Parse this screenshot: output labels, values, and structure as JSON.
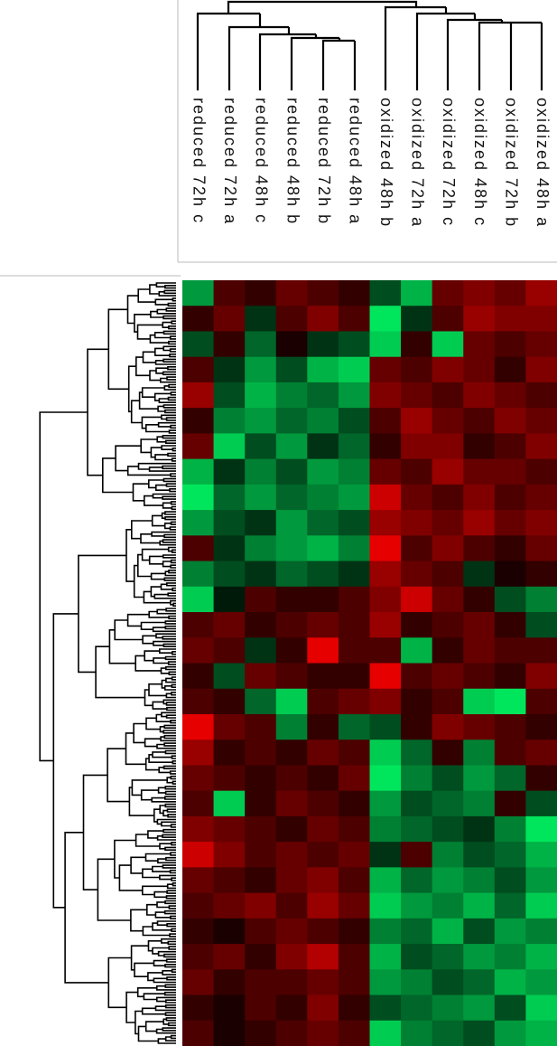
{
  "chart_data": {
    "type": "heatmap",
    "categories": [
      "reduced 72h c",
      "reduced 72h a",
      "reduced 48h c",
      "reduced 48h b",
      "reduced 72h b",
      "reduced 48h a",
      "oxidized 48h b",
      "oxidized 72h a",
      "oxidized 72h c",
      "oxidized 48h c",
      "oxidized 72h b",
      "oxidized 48h a"
    ],
    "clim": [
      -1,
      1
    ],
    "low_color": "#00ff66",
    "mid_color": "#000000",
    "high_color": "#ff0000",
    "values": [
      [
        -0.6,
        0.3,
        0.2,
        0.4,
        0.3,
        0.2,
        -0.3,
        -0.7,
        0.4,
        0.5,
        0.4,
        0.6
      ],
      [
        0.2,
        0.4,
        -0.2,
        0.3,
        0.5,
        0.3,
        -0.9,
        -0.2,
        0.3,
        0.6,
        0.5,
        0.5
      ],
      [
        -0.3,
        0.2,
        -0.4,
        0.1,
        -0.2,
        -0.3,
        -0.8,
        0.2,
        -0.8,
        0.4,
        0.3,
        0.4
      ],
      [
        0.3,
        -0.2,
        -0.6,
        -0.3,
        -0.7,
        -0.8,
        0.4,
        0.3,
        0.5,
        0.4,
        0.2,
        0.5
      ],
      [
        0.6,
        -0.3,
        -0.7,
        -0.5,
        -0.4,
        -0.6,
        0.5,
        0.4,
        0.3,
        0.5,
        0.4,
        0.3
      ],
      [
        0.2,
        -0.5,
        -0.6,
        -0.4,
        -0.5,
        -0.3,
        0.3,
        0.6,
        0.4,
        0.3,
        0.5,
        0.4
      ],
      [
        0.4,
        -0.8,
        -0.3,
        -0.6,
        -0.2,
        -0.4,
        0.2,
        0.5,
        0.5,
        0.2,
        0.3,
        0.5
      ],
      [
        -0.7,
        -0.2,
        -0.5,
        -0.3,
        -0.6,
        -0.5,
        0.4,
        0.3,
        0.6,
        0.4,
        0.4,
        0.3
      ],
      [
        -0.9,
        -0.4,
        -0.6,
        -0.4,
        -0.5,
        -0.6,
        0.8,
        0.4,
        0.3,
        0.5,
        0.3,
        0.4
      ],
      [
        -0.6,
        -0.3,
        -0.2,
        -0.6,
        -0.4,
        -0.3,
        0.6,
        0.5,
        0.4,
        0.6,
        0.4,
        0.5
      ],
      [
        0.3,
        -0.2,
        -0.5,
        -0.6,
        -0.7,
        -0.5,
        0.9,
        0.3,
        0.5,
        0.3,
        0.2,
        0.4
      ],
      [
        -0.5,
        -0.3,
        -0.2,
        -0.4,
        -0.3,
        -0.2,
        0.6,
        0.4,
        0.3,
        -0.2,
        0.1,
        0.2
      ],
      [
        -0.8,
        -0.1,
        0.3,
        0.2,
        0.2,
        0.3,
        0.5,
        0.8,
        0.4,
        0.2,
        -0.3,
        -0.5
      ],
      [
        0.3,
        0.4,
        0.2,
        0.3,
        0.4,
        0.3,
        0.6,
        0.2,
        0.3,
        0.4,
        0.2,
        -0.3
      ],
      [
        0.4,
        0.3,
        -0.2,
        0.2,
        0.9,
        0.3,
        0.3,
        -0.7,
        0.2,
        0.4,
        0.3,
        0.3
      ],
      [
        0.2,
        -0.3,
        0.4,
        0.3,
        0.2,
        0.2,
        0.9,
        0.3,
        0.4,
        0.3,
        0.2,
        0.5
      ],
      [
        0.3,
        0.2,
        -0.4,
        -0.8,
        0.3,
        0.4,
        0.5,
        0.2,
        0.3,
        -0.8,
        -0.9,
        0.3
      ],
      [
        0.9,
        0.4,
        0.3,
        -0.5,
        0.2,
        -0.4,
        -0.3,
        0.2,
        0.5,
        0.4,
        0.3,
        0.2
      ],
      [
        0.6,
        0.2,
        0.3,
        0.2,
        0.4,
        0.3,
        -0.8,
        -0.4,
        0.2,
        -0.5,
        0.3,
        0.4
      ],
      [
        0.4,
        0.3,
        0.2,
        0.3,
        0.2,
        0.4,
        -0.9,
        -0.5,
        -0.3,
        -0.6,
        -0.4,
        0.2
      ],
      [
        0.3,
        -0.8,
        0.2,
        0.4,
        0.3,
        0.2,
        -0.6,
        -0.3,
        -0.4,
        -0.5,
        0.2,
        -0.3
      ],
      [
        0.5,
        0.4,
        0.3,
        0.2,
        0.4,
        0.3,
        -0.5,
        -0.4,
        -0.3,
        -0.2,
        -0.5,
        -0.9
      ],
      [
        0.8,
        0.5,
        0.3,
        0.4,
        0.3,
        0.4,
        -0.2,
        0.3,
        -0.5,
        -0.3,
        -0.4,
        -0.7
      ],
      [
        0.4,
        0.3,
        0.2,
        0.4,
        0.5,
        0.3,
        -0.7,
        -0.4,
        -0.6,
        -0.5,
        -0.3,
        -0.6
      ],
      [
        0.3,
        0.4,
        0.5,
        0.3,
        0.6,
        0.4,
        -0.8,
        -0.6,
        -0.5,
        -0.7,
        -0.4,
        -0.8
      ],
      [
        0.2,
        0.1,
        0.3,
        0.4,
        0.3,
        0.2,
        -0.5,
        -0.4,
        -0.7,
        -0.3,
        -0.6,
        -0.5
      ],
      [
        0.3,
        0.4,
        0.2,
        0.5,
        0.7,
        0.3,
        -0.7,
        -0.3,
        -0.4,
        -0.6,
        -0.5,
        -0.7
      ],
      [
        0.4,
        0.2,
        0.3,
        0.3,
        0.4,
        0.3,
        -0.6,
        -0.5,
        -0.3,
        -0.4,
        -0.7,
        -0.6
      ],
      [
        0.2,
        0.1,
        0.3,
        0.2,
        0.5,
        0.2,
        -0.3,
        -0.4,
        -0.5,
        -0.6,
        -0.3,
        -0.8
      ],
      [
        0.3,
        0.1,
        0.2,
        0.3,
        0.4,
        0.3,
        -0.8,
        -0.5,
        -0.4,
        -0.3,
        -0.6,
        -0.7
      ]
    ]
  }
}
